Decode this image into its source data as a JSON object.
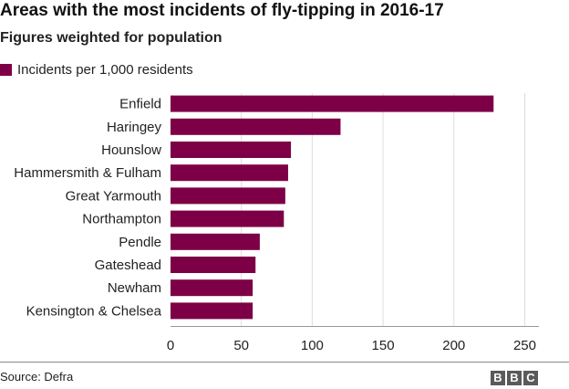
{
  "header": {
    "title": "Areas with the most incidents of fly-tipping in 2016-17",
    "subtitle": "Figures weighted for population"
  },
  "footer": {
    "source": "Source: Defra",
    "logo_letters": [
      "B",
      "B",
      "C"
    ]
  },
  "colors": {
    "bar": "#7d0046",
    "grid": "#dddddd",
    "axis": "#999999",
    "text": "#222222"
  },
  "chart_data": {
    "type": "bar",
    "orientation": "horizontal",
    "categories": [
      "Enfield",
      "Haringey",
      "Hounslow",
      "Hammersmith & Fulham",
      "Great Yarmouth",
      "Northampton",
      "Pendle",
      "Gateshead",
      "Newham",
      "Kensington & Chelsea"
    ],
    "series": [
      {
        "name": "Incidents per 1,000 residents",
        "values": [
          228,
          120,
          85,
          83,
          81,
          80,
          63,
          60,
          58,
          58
        ]
      }
    ],
    "xlim": [
      0,
      260
    ],
    "xticks": [
      0,
      50,
      100,
      150,
      200,
      250
    ],
    "xlabel": "",
    "ylabel": "",
    "grid": true,
    "legend": "top-left"
  }
}
